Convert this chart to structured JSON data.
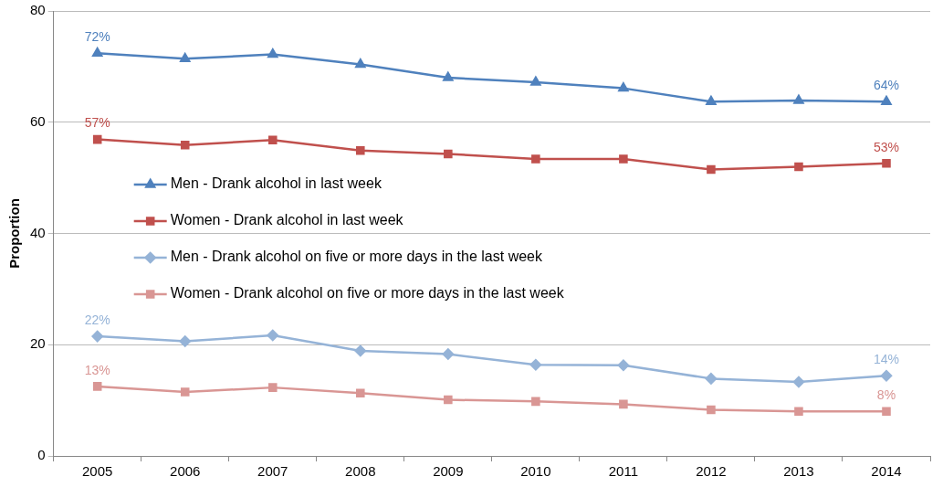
{
  "chart_data": {
    "type": "line",
    "ylabel": "Proportion",
    "categories": [
      "2005",
      "2006",
      "2007",
      "2008",
      "2009",
      "2010",
      "2011",
      "2012",
      "2013",
      "2014"
    ],
    "series": [
      {
        "name": "Men - Drank alcohol in last week",
        "color": "#4f81bd",
        "marker": "triangle",
        "values": [
          72.4,
          71.4,
          72.2,
          70.4,
          68.0,
          67.2,
          66.1,
          63.7,
          63.9,
          63.7
        ],
        "value_labels": [
          "72%",
          null,
          null,
          null,
          null,
          null,
          null,
          null,
          null,
          "64%"
        ]
      },
      {
        "name": "Women - Drank alcohol in last week",
        "color": "#c0504d",
        "marker": "square",
        "values": [
          56.9,
          55.9,
          56.8,
          54.9,
          54.3,
          53.4,
          53.4,
          51.5,
          52.0,
          52.6
        ],
        "value_labels": [
          "57%",
          null,
          null,
          null,
          null,
          null,
          null,
          null,
          null,
          "53%"
        ]
      },
      {
        "name": "Men - Drank alcohol on five or more days in the last week",
        "color": "#95b3d7",
        "marker": "diamond",
        "values": [
          21.5,
          20.6,
          21.7,
          18.9,
          18.3,
          16.4,
          16.3,
          13.9,
          13.3,
          14.4
        ],
        "value_labels": [
          "22%",
          null,
          null,
          null,
          null,
          null,
          null,
          null,
          null,
          "14%"
        ]
      },
      {
        "name": "Women - Drank alcohol on five or more days in the last week",
        "color": "#d99694",
        "marker": "square",
        "values": [
          12.5,
          11.5,
          12.3,
          11.3,
          10.1,
          9.8,
          9.3,
          8.3,
          8.0,
          8.0
        ],
        "value_labels": [
          "13%",
          null,
          null,
          null,
          null,
          null,
          null,
          null,
          null,
          "8%"
        ]
      }
    ],
    "ylim": [
      0,
      80
    ],
    "yticks": [
      0,
      20,
      40,
      60,
      80
    ],
    "grid": "y",
    "legend": "left",
    "line_style": "solid"
  }
}
